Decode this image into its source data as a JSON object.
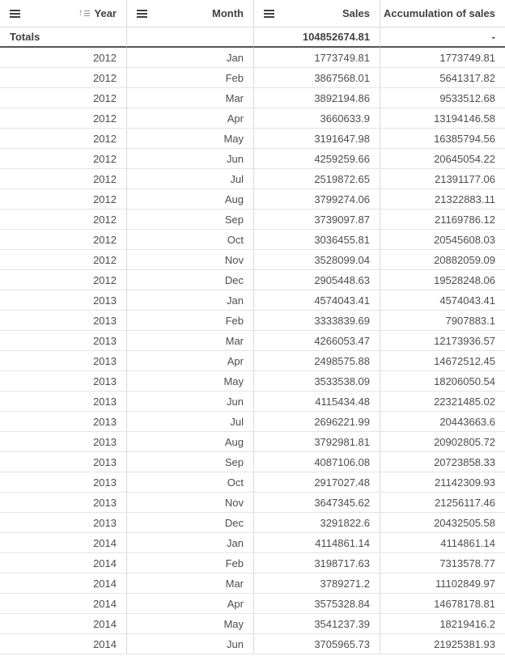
{
  "colors": {
    "background": "#ffffff",
    "header_text": "#404040",
    "body_text": "#4d4d4d",
    "border_light": "#d9d9d9",
    "border_totals_dark": "#545454",
    "menu_icon": "#404040",
    "sort_icon": "#7b7b7b"
  },
  "icons": {
    "column_menu": "hamburger-menu",
    "year_sort": "sort-ascending"
  },
  "table": {
    "columns": [
      {
        "label": "Year",
        "has_menu": true,
        "sorted_ascending": true
      },
      {
        "label": "Month",
        "has_menu": true,
        "sorted_ascending": false
      },
      {
        "label": "Sales",
        "has_menu": true,
        "sorted_ascending": false
      },
      {
        "label": "Accumulation of sales",
        "has_menu": false,
        "sorted_ascending": false
      }
    ],
    "totals": {
      "label": "Totals",
      "month": "",
      "sales": "104852674.81",
      "accumulation": "-"
    },
    "rows": [
      {
        "year": "2012",
        "month": "Jan",
        "sales": "1773749.81",
        "acc": "1773749.81"
      },
      {
        "year": "2012",
        "month": "Feb",
        "sales": "3867568.01",
        "acc": "5641317.82"
      },
      {
        "year": "2012",
        "month": "Mar",
        "sales": "3892194.86",
        "acc": "9533512.68"
      },
      {
        "year": "2012",
        "month": "Apr",
        "sales": "3660633.9",
        "acc": "13194146.58"
      },
      {
        "year": "2012",
        "month": "May",
        "sales": "3191647.98",
        "acc": "16385794.56"
      },
      {
        "year": "2012",
        "month": "Jun",
        "sales": "4259259.66",
        "acc": "20645054.22"
      },
      {
        "year": "2012",
        "month": "Jul",
        "sales": "2519872.65",
        "acc": "21391177.06"
      },
      {
        "year": "2012",
        "month": "Aug",
        "sales": "3799274.06",
        "acc": "21322883.11"
      },
      {
        "year": "2012",
        "month": "Sep",
        "sales": "3739097.87",
        "acc": "21169786.12"
      },
      {
        "year": "2012",
        "month": "Oct",
        "sales": "3036455.81",
        "acc": "20545608.03"
      },
      {
        "year": "2012",
        "month": "Nov",
        "sales": "3528099.04",
        "acc": "20882059.09"
      },
      {
        "year": "2012",
        "month": "Dec",
        "sales": "2905448.63",
        "acc": "19528248.06"
      },
      {
        "year": "2013",
        "month": "Jan",
        "sales": "4574043.41",
        "acc": "4574043.41"
      },
      {
        "year": "2013",
        "month": "Feb",
        "sales": "3333839.69",
        "acc": "7907883.1"
      },
      {
        "year": "2013",
        "month": "Mar",
        "sales": "4266053.47",
        "acc": "12173936.57"
      },
      {
        "year": "2013",
        "month": "Apr",
        "sales": "2498575.88",
        "acc": "14672512.45"
      },
      {
        "year": "2013",
        "month": "May",
        "sales": "3533538.09",
        "acc": "18206050.54"
      },
      {
        "year": "2013",
        "month": "Jun",
        "sales": "4115434.48",
        "acc": "22321485.02"
      },
      {
        "year": "2013",
        "month": "Jul",
        "sales": "2696221.99",
        "acc": "20443663.6"
      },
      {
        "year": "2013",
        "month": "Aug",
        "sales": "3792981.81",
        "acc": "20902805.72"
      },
      {
        "year": "2013",
        "month": "Sep",
        "sales": "4087106.08",
        "acc": "20723858.33"
      },
      {
        "year": "2013",
        "month": "Oct",
        "sales": "2917027.48",
        "acc": "21142309.93"
      },
      {
        "year": "2013",
        "month": "Nov",
        "sales": "3647345.62",
        "acc": "21256117.46"
      },
      {
        "year": "2013",
        "month": "Dec",
        "sales": "3291822.6",
        "acc": "20432505.58"
      },
      {
        "year": "2014",
        "month": "Jan",
        "sales": "4114861.14",
        "acc": "4114861.14"
      },
      {
        "year": "2014",
        "month": "Feb",
        "sales": "3198717.63",
        "acc": "7313578.77"
      },
      {
        "year": "2014",
        "month": "Mar",
        "sales": "3789271.2",
        "acc": "11102849.97"
      },
      {
        "year": "2014",
        "month": "Apr",
        "sales": "3575328.84",
        "acc": "14678178.81"
      },
      {
        "year": "2014",
        "month": "May",
        "sales": "3541237.39",
        "acc": "18219416.2"
      },
      {
        "year": "2014",
        "month": "Jun",
        "sales": "3705965.73",
        "acc": "21925381.93"
      }
    ]
  }
}
